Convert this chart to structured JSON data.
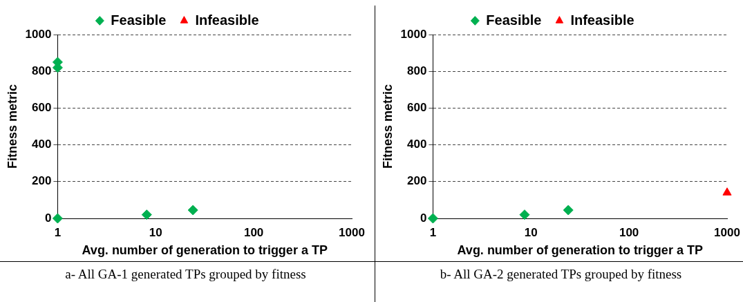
{
  "chart_data": [
    {
      "type": "scatter",
      "xlabel": "Avg. number of generation to trigger a TP",
      "ylabel": "Fitness metric",
      "log": "x",
      "xlim": [
        1,
        1000
      ],
      "xticks": [
        1,
        10,
        100,
        1000
      ],
      "ylim": [
        0,
        1000
      ],
      "yticks": [
        0,
        200,
        400,
        600,
        800,
        1000
      ],
      "grid": "y",
      "legend": "top",
      "annotations": [
        "a- All GA-1 generated TPs grouped by fitness"
      ],
      "series": [
        {
          "name": "Feasible",
          "color": "#00b050",
          "marker": "diamond",
          "x": [
            1,
            1,
            1,
            8.1,
            24
          ],
          "values": [
            850,
            820,
            0,
            20,
            45
          ]
        },
        {
          "name": "Infeasible",
          "color": "#ff0000",
          "marker": "triangle"
        }
      ]
    },
    {
      "type": "scatter",
      "xlabel": "Avg. number of generation to trigger a TP",
      "ylabel": "Fitness metric",
      "log": "x",
      "xlim": [
        1,
        1000
      ],
      "xticks": [
        1,
        10,
        100,
        1000
      ],
      "ylim": [
        0,
        1000
      ],
      "yticks": [
        0,
        200,
        400,
        600,
        800,
        1000
      ],
      "grid": "y",
      "legend": "top",
      "annotations": [
        "b- All GA-2 generated TPs grouped by fitness"
      ],
      "series": [
        {
          "name": "Feasible",
          "color": "#00b050",
          "marker": "diamond",
          "x": [
            1,
            8.6,
            24
          ],
          "values": [
            0,
            20,
            45
          ]
        },
        {
          "name": "Infeasible",
          "color": "#ff0000",
          "marker": "triangle",
          "x": [
            1000
          ],
          "values": [
            140
          ]
        }
      ]
    }
  ]
}
